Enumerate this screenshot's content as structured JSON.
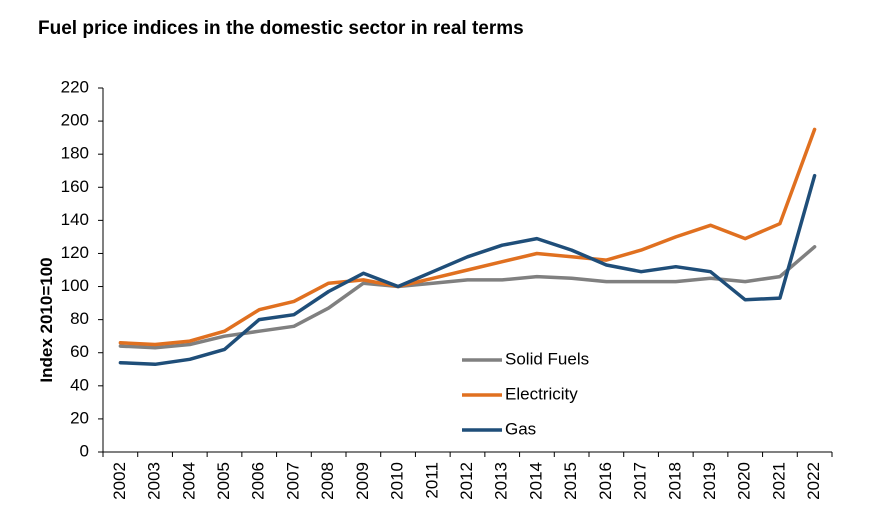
{
  "chart_data": {
    "type": "line",
    "title": "Fuel price indices in the domestic sector in real terms",
    "xlabel": "",
    "ylabel": "Index 2010=100",
    "x": [
      "2002",
      "2003",
      "2004",
      "2005",
      "2006",
      "2007",
      "2008",
      "2009",
      "2010",
      "2011",
      "2012",
      "2013",
      "2014",
      "2015",
      "2016",
      "2017",
      "2018",
      "2019",
      "2020",
      "2021",
      "2022"
    ],
    "ylim": [
      0,
      220
    ],
    "yticks": [
      0,
      20,
      40,
      60,
      80,
      100,
      120,
      140,
      160,
      180,
      200,
      220
    ],
    "grid": false,
    "legend_position": "bottom-center",
    "series": [
      {
        "name": "Solid Fuels",
        "color": "#808080",
        "values": [
          64,
          63,
          65,
          70,
          73,
          76,
          87,
          102,
          100,
          102,
          104,
          104,
          106,
          105,
          103,
          103,
          103,
          105,
          103,
          106,
          124
        ]
      },
      {
        "name": "Electricity",
        "color": "#E07020",
        "values": [
          66,
          65,
          67,
          73,
          86,
          91,
          102,
          104,
          100,
          105,
          110,
          115,
          120,
          118,
          116,
          122,
          130,
          137,
          129,
          138,
          195
        ]
      },
      {
        "name": "Gas",
        "color": "#1F4E79",
        "values": [
          54,
          53,
          56,
          62,
          80,
          83,
          97,
          108,
          100,
          109,
          118,
          125,
          129,
          122,
          113,
          109,
          112,
          109,
          92,
          93,
          167
        ]
      }
    ]
  }
}
